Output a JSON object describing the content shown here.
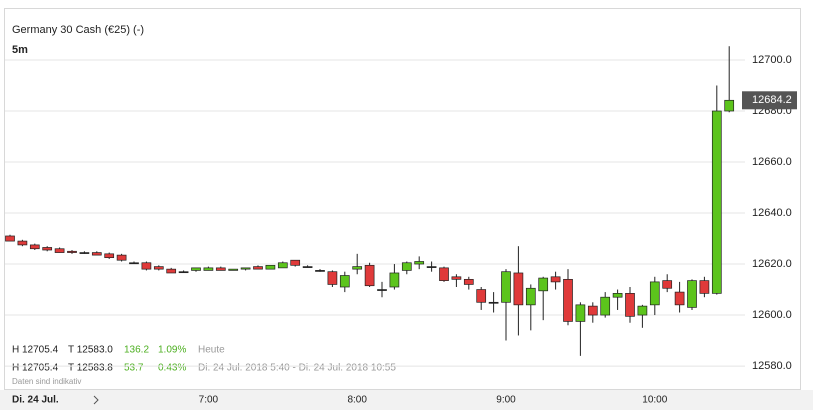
{
  "chart_data": {
    "type": "candlestick",
    "title": "Germany 30 Cash (€25) (-)",
    "subtitle": "5m",
    "date_label": "Di. 24 Jul.",
    "categories": [
      null,
      null,
      null,
      null,
      null,
      null,
      null,
      null,
      null,
      null,
      null,
      null,
      null,
      null,
      null,
      null,
      "7:00",
      null,
      null,
      null,
      null,
      null,
      null,
      null,
      null,
      null,
      null,
      null,
      "8:00",
      null,
      null,
      null,
      null,
      null,
      null,
      null,
      null,
      null,
      null,
      null,
      "9:00",
      null,
      null,
      null,
      null,
      null,
      null,
      null,
      null,
      null,
      null,
      null,
      "10:00",
      null,
      null,
      null,
      null,
      null,
      null
    ],
    "open": [
      12631,
      12629,
      12627.5,
      12626.5,
      12626,
      12625,
      12624.5,
      12624.5,
      12624,
      12623.5,
      12620.5,
      12620.5,
      12619,
      12618,
      12617,
      12617.5,
      12617.5,
      12618.5,
      12617.5,
      12618,
      12619,
      12618,
      12618.5,
      12621.5,
      12619,
      12617.5,
      12617,
      12611,
      12618,
      12619.5,
      12610,
      12611,
      12617.5,
      12620,
      12619,
      12618.5,
      12615,
      12614,
      12610,
      12605,
      12605,
      12616.5,
      12604,
      12609.5,
      12615,
      12614,
      12597.5,
      12603.5,
      12600,
      12607,
      12608.5,
      12600,
      12604,
      12613.5,
      12609,
      12603,
      12613.5,
      12608.5,
      12680
    ],
    "high": [
      12631.5,
      12629.5,
      12628,
      12627,
      12626.5,
      12625.5,
      12625,
      12625,
      12624.5,
      12624,
      12621,
      12621,
      12619.5,
      12618.5,
      12617.5,
      12618.5,
      12619,
      12619,
      12618,
      12618.5,
      12619.5,
      12619.5,
      12621,
      12621.5,
      12619.5,
      12618,
      12617.5,
      12617,
      12624,
      12620.5,
      12613,
      12620,
      12621,
      12623,
      12621,
      12619,
      12616,
      12615,
      12611,
      12609,
      12618,
      12627,
      12612,
      12615,
      12617,
      12618,
      12605,
      12605,
      12609,
      12610,
      12611,
      12604,
      12615,
      12616,
      12613,
      12614,
      12615,
      12690,
      12705.4
    ],
    "low": [
      12629,
      12627,
      12625.5,
      12625,
      12624.5,
      12624,
      12624,
      12623.5,
      12622,
      12621,
      12620.5,
      12617.5,
      12617.5,
      12616.5,
      12617,
      12617,
      12617.5,
      12617.5,
      12617.5,
      12617.5,
      12618,
      12618,
      12618.5,
      12619,
      12619,
      12617,
      12611,
      12609,
      12616,
      12611,
      12607,
      12610,
      12616,
      12618,
      12617,
      12613,
      12611,
      12610,
      12602,
      12601,
      12590,
      12592,
      12594,
      12598,
      12610,
      12596,
      12584,
      12597,
      12599,
      12602,
      12597,
      12595,
      12600,
      12609,
      12601,
      12602,
      12607,
      12608,
      12679.5
    ],
    "close": [
      12629,
      12627.5,
      12626,
      12625.5,
      12624.5,
      12624.5,
      12624.5,
      12623.5,
      12622.5,
      12621.5,
      12620.5,
      12618,
      12618,
      12616.5,
      12617,
      12618.5,
      12618.5,
      12617.5,
      12618,
      12618.5,
      12618,
      12619.5,
      12620.5,
      12619.5,
      12619,
      12617.5,
      12612,
      12615.5,
      12619,
      12611.5,
      12610,
      12616.5,
      12620.5,
      12621,
      12619,
      12613.5,
      12614,
      12612,
      12605,
      12605,
      12617,
      12604,
      12610.5,
      12614.5,
      12613,
      12597.5,
      12604,
      12600,
      12607,
      12608.5,
      12599.5,
      12603.5,
      12613,
      12610.5,
      12604,
      12613.5,
      12608.5,
      12680,
      12684.2
    ],
    "up_color": "#5cc41c",
    "down_color": "#e03a3a",
    "current_price": 12684.2,
    "ylim": [
      12571.4,
      12719.6
    ],
    "yticks": [
      {
        "value": 12580,
        "label": "12580.0"
      },
      {
        "value": 12600,
        "label": "12600.0"
      },
      {
        "value": 12620,
        "label": "12620.0"
      },
      {
        "value": 12640,
        "label": "12640.0"
      },
      {
        "value": 12660,
        "label": "12660.0"
      },
      {
        "value": 12680,
        "label": "12680.0"
      },
      {
        "value": 12700,
        "label": "12700.0"
      }
    ],
    "grid": true
  },
  "stats": {
    "rows": [
      {
        "high": "H 12705.4",
        "low": "T 12583.0",
        "change": "136.2",
        "percent": "1.09%",
        "period": "Heute"
      },
      {
        "high": "H 12705.4",
        "low": "T 12583.8",
        "change": "53.7",
        "percent": "0.43%",
        "period": "Di. 24 Jul. 2018 5:40 - Di. 24 Jul. 2018 10:55"
      }
    ],
    "note": "Daten sind indikativ"
  }
}
